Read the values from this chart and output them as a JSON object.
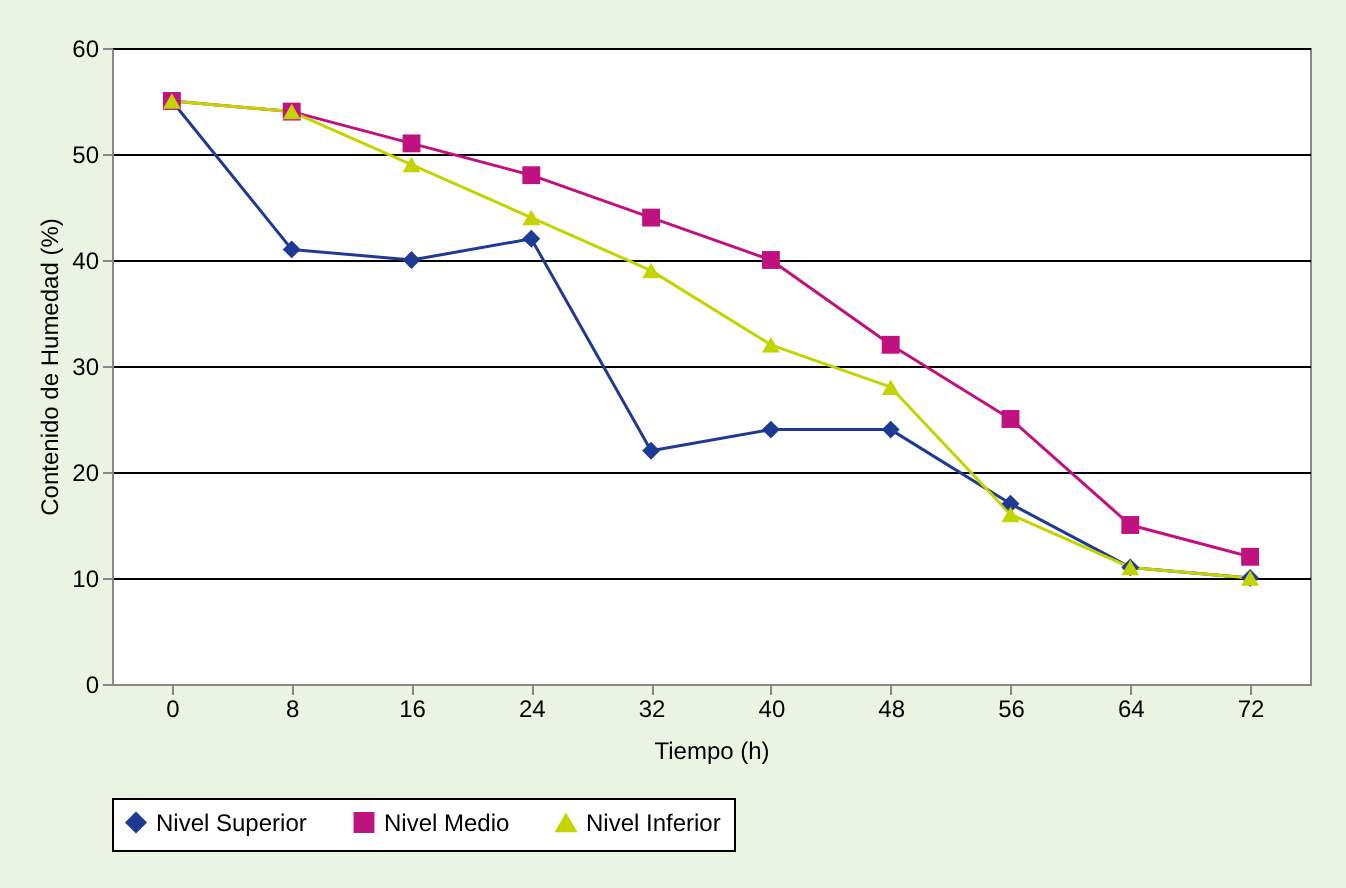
{
  "chart_data": {
    "type": "line",
    "xlabel": "Tiempo (h)",
    "ylabel": "Contenido de Humedad (%)",
    "categories": [
      "0",
      "8",
      "16",
      "24",
      "32",
      "40",
      "48",
      "56",
      "64",
      "72"
    ],
    "series": [
      {
        "name": "Nivel Superior",
        "color": "#1f3a93",
        "marker": "diamond",
        "values": [
          55,
          41,
          40,
          42,
          22,
          24,
          24,
          17,
          11,
          10
        ]
      },
      {
        "name": "Nivel Medio",
        "color": "#c0127f",
        "marker": "square",
        "values": [
          55,
          54,
          51,
          48,
          44,
          40,
          32,
          25,
          15,
          12
        ]
      },
      {
        "name": "Nivel Inferior",
        "color": "#c3d400",
        "marker": "triangle",
        "values": [
          55,
          54,
          49,
          44,
          39,
          32,
          28,
          16,
          11,
          10
        ]
      }
    ],
    "ylim": [
      0,
      60
    ],
    "yticks": [
      0,
      10,
      20,
      30,
      40,
      50,
      60
    ],
    "grid": "y",
    "legend": "bottom",
    "line_style": "solid"
  }
}
